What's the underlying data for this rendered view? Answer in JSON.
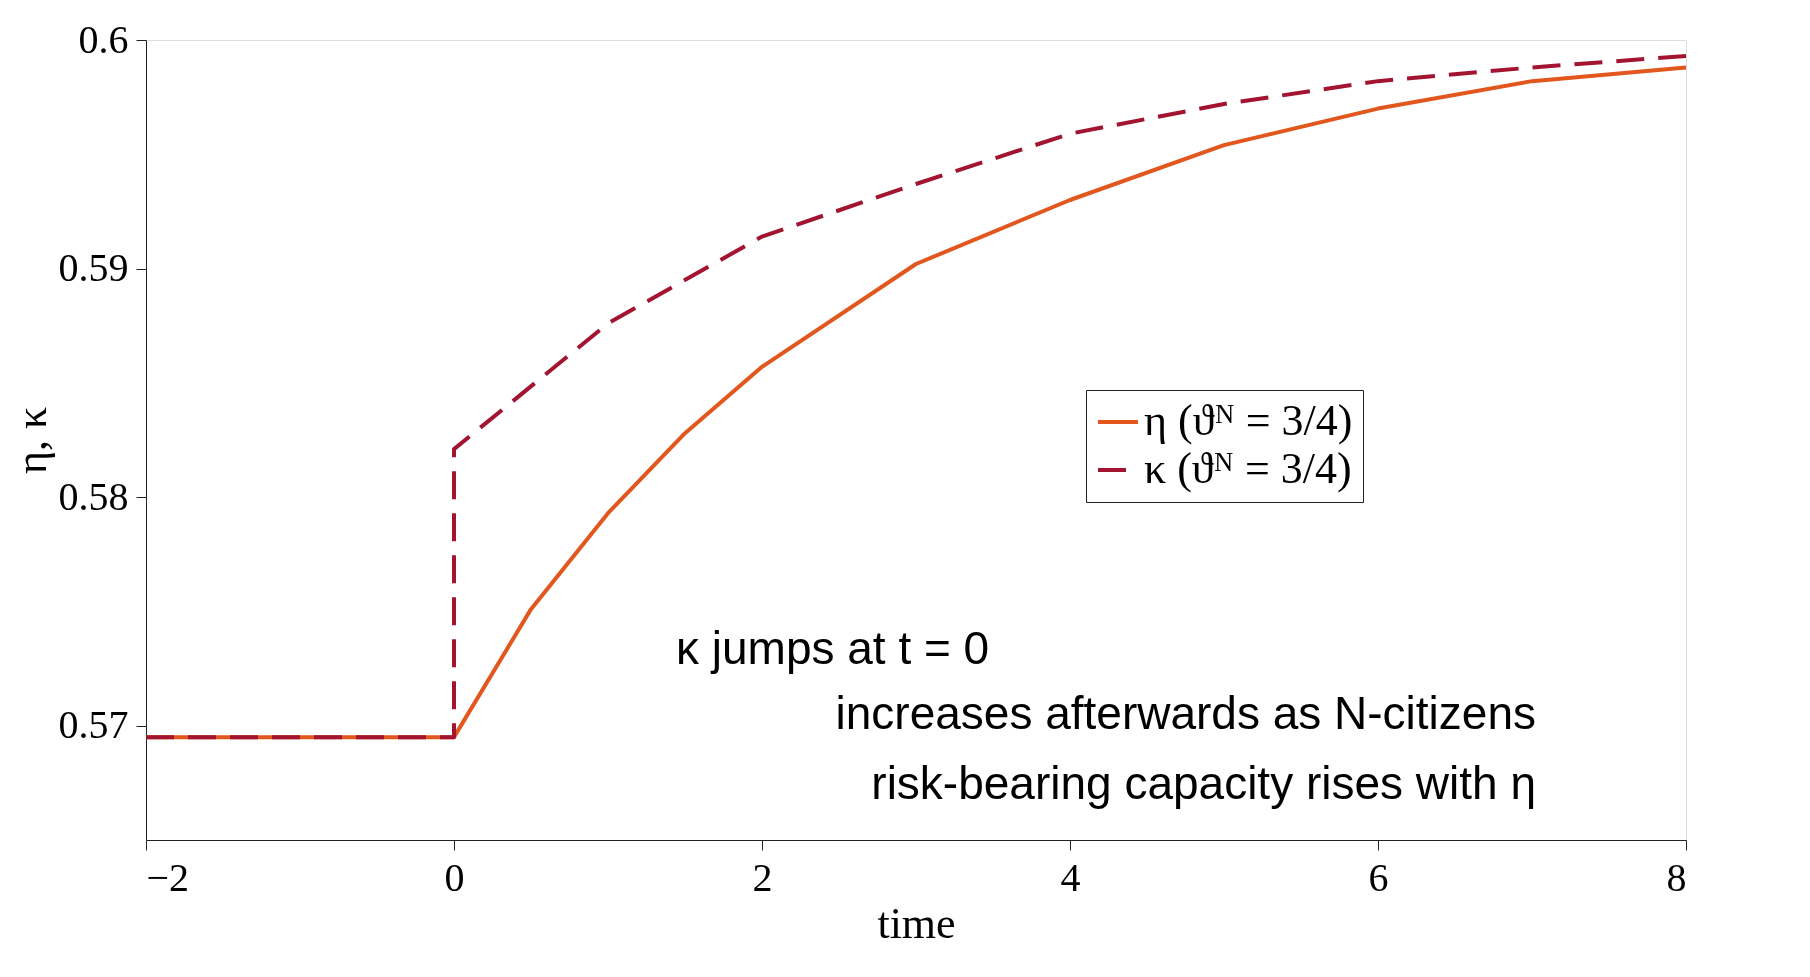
{
  "chart_data": {
    "type": "line",
    "xlabel": "time",
    "ylabel": "η, κ",
    "xlim": [
      -2,
      8
    ],
    "ylim": [
      0.565,
      0.6
    ],
    "xticks": [
      -2,
      0,
      2,
      4,
      6,
      8
    ],
    "yticks": [
      0.57,
      0.58,
      0.59,
      0.6
    ],
    "grid": false,
    "legend": "right",
    "marker": "none",
    "annotations": [
      "κ jumps at t = 0",
      "increases afterwards as N-citizens",
      "risk-bearing capacity rises with η"
    ],
    "series": [
      {
        "name": "η (ϑᴺ = 3/4)",
        "color": "#e2571e",
        "line_style": "solid",
        "x": [
          -2,
          0,
          0.5,
          1,
          1.5,
          2,
          3,
          4,
          5,
          6,
          7,
          8
        ],
        "values": [
          0.5695,
          0.5695,
          0.5751,
          0.5793,
          0.5828,
          0.5857,
          0.5902,
          0.593,
          0.5954,
          0.597,
          0.5982,
          0.5988
        ]
      },
      {
        "name": "κ (ϑᴺ = 3/4)",
        "color": "#a2142f",
        "line_style": "dashed",
        "x": [
          -2,
          0,
          0,
          1,
          2,
          3,
          4,
          5,
          6,
          7,
          8
        ],
        "values": [
          0.5695,
          0.5695,
          0.5821,
          0.5876,
          0.5914,
          0.5937,
          0.5959,
          0.5972,
          0.5982,
          0.5988,
          0.5993
        ]
      }
    ]
  }
}
